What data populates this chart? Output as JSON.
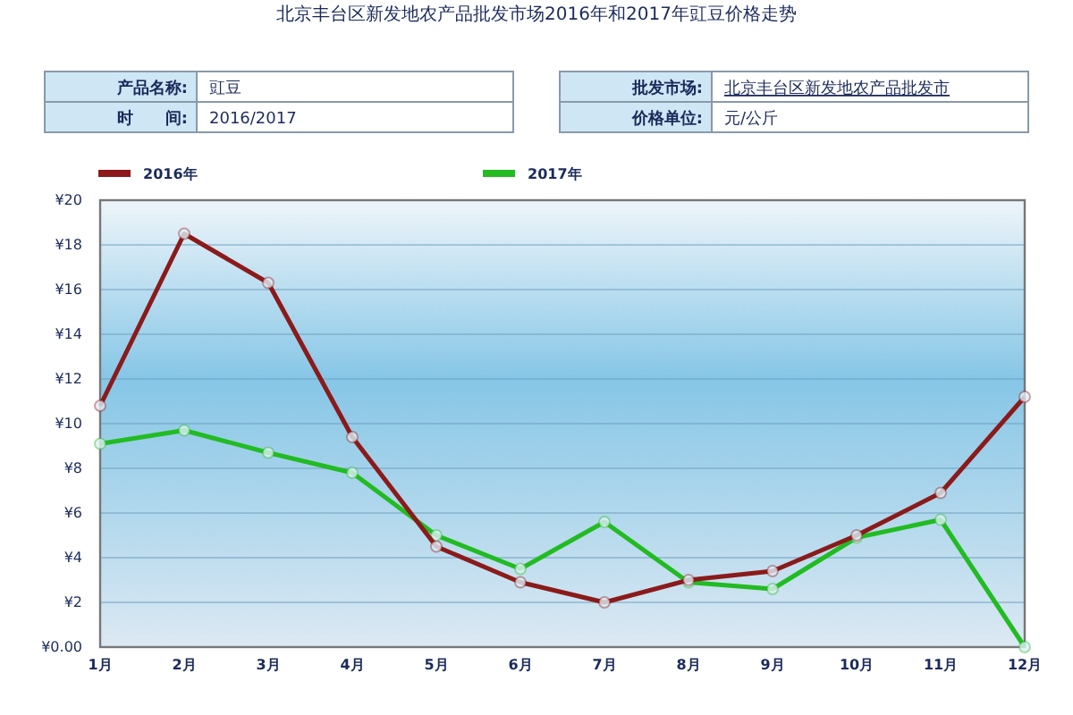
{
  "chart_data": {
    "type": "line",
    "title": "北京丰台区新发地农产品批发市场2016年和2017年豇豆价格走势",
    "annotations": [
      "产品名称:",
      "豇豆",
      "时　　间:",
      "2016/2017",
      "批发市场:",
      "北京丰台区新发地农产品批发市",
      "价格单位:",
      "元/公斤"
    ],
    "categories": [
      "1月",
      "2月",
      "3月",
      "4月",
      "5月",
      "6月",
      "7月",
      "8月",
      "9月",
      "10月",
      "11月",
      "12月"
    ],
    "series": [
      {
        "name": "2016年",
        "color": "#8b1a1a",
        "values": [
          10.8,
          18.5,
          16.3,
          9.4,
          4.5,
          2.9,
          2.0,
          3.0,
          3.4,
          5.0,
          6.9,
          11.2
        ]
      },
      {
        "name": "2017年",
        "color": "#22bb22",
        "values": [
          9.1,
          9.7,
          8.7,
          7.8,
          5.0,
          3.5,
          5.6,
          2.9,
          2.6,
          4.9,
          5.7,
          0
        ]
      }
    ],
    "ylim": [
      0,
      20
    ],
    "yticks": [
      {
        "value": 0,
        "label": "¥0.00"
      },
      {
        "value": 2,
        "label": "¥2"
      },
      {
        "value": 4,
        "label": "¥4"
      },
      {
        "value": 6,
        "label": "¥6"
      },
      {
        "value": 8,
        "label": "¥8"
      },
      {
        "value": 10,
        "label": "¥10"
      },
      {
        "value": 12,
        "label": "¥12"
      },
      {
        "value": 14,
        "label": "¥14"
      },
      {
        "value": 16,
        "label": "¥16"
      },
      {
        "value": 18,
        "label": "¥18"
      },
      {
        "value": 20,
        "label": "¥20"
      }
    ],
    "grid": "y",
    "legend": "top",
    "marker": "circle",
    "line_style": "solid"
  }
}
